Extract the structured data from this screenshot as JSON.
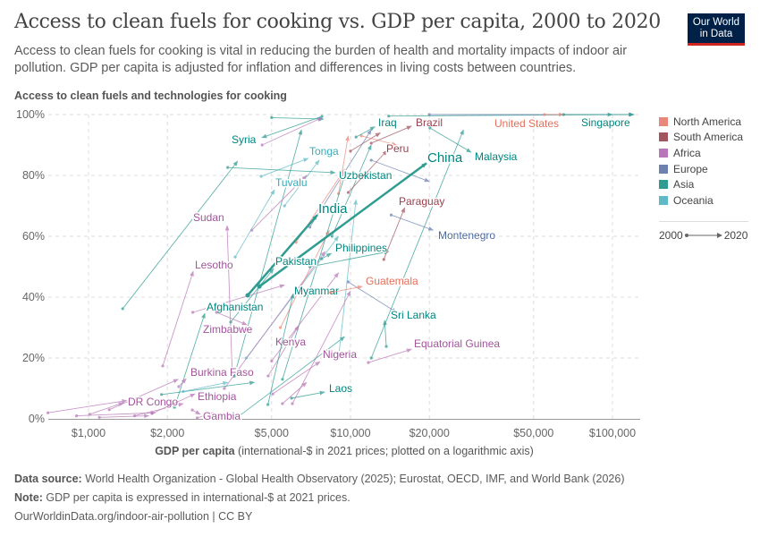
{
  "header": {
    "title": "Access to clean fuels for cooking vs. GDP per capita, 2000 to 2020",
    "subtitle": "Access to clean fuels for cooking is vital in reducing the burden of health and mortality impacts of indoor air pollution. GDP per capita is adjusted for inflation and differences in living costs between countries.",
    "logo_line1": "Our World",
    "logo_line2": "in Data"
  },
  "chart_data": {
    "type": "scatter",
    "subtype": "connected-arrows (start year to end year)",
    "ylabel": "Access to clean fuels and technologies for cooking",
    "xlabel_bold": "GDP per capita",
    "xlabel_rest": " (international-$ in 2021 prices; plotted on a logarithmic axis)",
    "x_scale": "log",
    "xlim": [
      700,
      127000
    ],
    "ylim": [
      0,
      100
    ],
    "grid": true,
    "x_ticks": [
      {
        "v": 1000,
        "label": "$1,000"
      },
      {
        "v": 2000,
        "label": "$2,000"
      },
      {
        "v": 5000,
        "label": "$5,000"
      },
      {
        "v": 10000,
        "label": "$10,000"
      },
      {
        "v": 20000,
        "label": "$20,000"
      },
      {
        "v": 50000,
        "label": "$50,000"
      },
      {
        "v": 100000,
        "label": "$100,000"
      }
    ],
    "y_ticks": [
      {
        "v": 0,
        "label": "0%"
      },
      {
        "v": 20,
        "label": "20%"
      },
      {
        "v": 40,
        "label": "40%"
      },
      {
        "v": 60,
        "label": "60%"
      },
      {
        "v": 80,
        "label": "80%"
      },
      {
        "v": 100,
        "label": "100%"
      }
    ],
    "legend_position": "right",
    "regions": [
      {
        "key": "NA",
        "name": "North America",
        "color": "#e9887a",
        "label_color": "#e56e5a"
      },
      {
        "key": "SA",
        "name": "South America",
        "color": "#a2545f",
        "label_color": "#9a3f4e"
      },
      {
        "key": "AF",
        "name": "Africa",
        "color": "#b976b8",
        "label_color": "#a2559c"
      },
      {
        "key": "EU",
        "name": "Europe",
        "color": "#6e82b0",
        "label_color": "#4c6a9c"
      },
      {
        "key": "AS",
        "name": "Asia",
        "color": "#2e9c91",
        "label_color": "#00847e"
      },
      {
        "key": "OC",
        "name": "Oceania",
        "color": "#5dbac6",
        "label_color": "#38aaba"
      }
    ],
    "time_legend": {
      "start": "2000",
      "end": "2020"
    },
    "countries": [
      {
        "name": "India",
        "region": "AS",
        "start": [
          4050,
          40.6
        ],
        "end": [
          7470,
          67
        ]
      },
      {
        "name": "China",
        "region": "AS",
        "start": [
          4490,
          43.5
        ],
        "end": [
          19500,
          84
        ]
      },
      {
        "name": "Pakistan",
        "region": "AS",
        "start": [
          3490,
          31.8
        ],
        "end": [
          5090,
          49.4
        ]
      },
      {
        "name": "Afghanistan",
        "region": "AS",
        "start": [
          2130,
          3.8
        ],
        "end": [
          2780,
          34.7
        ]
      },
      {
        "name": "Syria",
        "region": "AS",
        "start": [
          7780,
          99.4
        ],
        "end": [
          4590,
          92.4
        ]
      },
      {
        "name": "Tonga",
        "region": "OC",
        "start": [
          4560,
          79.7
        ],
        "end": [
          6900,
          85.6
        ]
      },
      {
        "name": "Tuvalu",
        "region": "OC",
        "start": [
          3630,
          53.2
        ],
        "end": [
          5130,
          75.3
        ]
      },
      {
        "name": "Sudan",
        "region": "AF",
        "start": [
          3540,
          14
        ],
        "end": [
          3380,
          63.5
        ]
      },
      {
        "name": "Lesotho",
        "region": "AF",
        "start": [
          1920,
          17.4
        ],
        "end": [
          2510,
          48.5
        ]
      },
      {
        "name": "Zimbabwe",
        "region": "AF",
        "start": [
          3080,
          35
        ],
        "end": [
          4020,
          30.9
        ]
      },
      {
        "name": "Kenya",
        "region": "AF",
        "start": [
          4850,
          14.1
        ],
        "end": [
          6340,
          30.6
        ]
      },
      {
        "name": "Nigeria",
        "region": "AF",
        "start": [
          5050,
          8.2
        ],
        "end": [
          7650,
          18.8
        ]
      },
      {
        "name": "Burkina Faso",
        "region": "AF",
        "start": [
          2210,
          10.6
        ],
        "end": [
          2360,
          13.2
        ]
      },
      {
        "name": "DR Congo",
        "region": "AF",
        "start": [
          1010,
          1.5
        ],
        "end": [
          1360,
          5.3
        ]
      },
      {
        "name": "Ethiopia",
        "region": "AF",
        "start": [
          1750,
          1.8
        ],
        "end": [
          2550,
          8.2
        ]
      },
      {
        "name": "Gambia",
        "region": "AF",
        "start": [
          2490,
          2.9
        ],
        "end": [
          2670,
          1.5
        ]
      },
      {
        "name": "Myanmar",
        "region": "AS",
        "start": [
          4840,
          4.7
        ],
        "end": [
          6050,
          41.2
        ]
      },
      {
        "name": "Laos",
        "region": "AS",
        "start": [
          5960,
          6.8
        ],
        "end": [
          7970,
          8.8
        ]
      },
      {
        "name": "Philippines",
        "region": "AS",
        "start": [
          7760,
          52.6
        ],
        "end": [
          8450,
          54.4
        ]
      },
      {
        "name": "Uzbekistan",
        "region": "AS",
        "start": [
          3400,
          82.6
        ],
        "end": [
          8740,
          80.9
        ]
      },
      {
        "name": "Iraq",
        "region": "AS",
        "start": [
          10500,
          92.6
        ],
        "end": [
          12400,
          96
        ]
      },
      {
        "name": "Brazil",
        "region": "SA",
        "start": [
          12000,
          90.6
        ],
        "end": [
          17100,
          96.2
        ]
      },
      {
        "name": "Peru",
        "region": "SA",
        "start": [
          9800,
          74.4
        ],
        "end": [
          13800,
          88.2
        ]
      },
      {
        "name": "Paraguay",
        "region": "SA",
        "start": [
          13400,
          52.4
        ],
        "end": [
          16100,
          69.4
        ]
      },
      {
        "name": "Montenegro",
        "region": "EU",
        "start": [
          14300,
          67
        ],
        "end": [
          20700,
          62
        ]
      },
      {
        "name": "Guatemala",
        "region": "NA",
        "start": [
          8400,
          41.5
        ],
        "end": [
          11100,
          43.5
        ]
      },
      {
        "name": "Sri Lanka",
        "region": "AS",
        "start": [
          13700,
          23.8
        ],
        "end": [
          13500,
          32.4
        ]
      },
      {
        "name": "Equatorial Guinea",
        "region": "AF",
        "start": [
          11700,
          18.5
        ],
        "end": [
          17100,
          22.9
        ]
      },
      {
        "name": "Malaysia",
        "region": "AS",
        "start": [
          20100,
          95.6
        ],
        "end": [
          28900,
          87.6
        ]
      },
      {
        "name": "United States",
        "region": "NA",
        "start": [
          55000,
          100
        ],
        "end": [
          65000,
          100
        ]
      },
      {
        "name": "Singapore",
        "region": "AS",
        "start": [
          65100,
          100
        ],
        "end": [
          121000,
          100
        ]
      }
    ],
    "unlabeled": [
      [
        "AS",
        1350,
        36.2,
        3710,
        84.7
      ],
      [
        "AS",
        5000,
        99,
        7900,
        98.5
      ],
      [
        "AF",
        4600,
        90,
        7800,
        99
      ],
      [
        "OC",
        4000,
        20,
        9000,
        60
      ],
      [
        "AF",
        2500,
        35,
        5600,
        44
      ],
      [
        "AF",
        3300,
        10,
        8000,
        55
      ],
      [
        "AS",
        3600,
        14,
        6500,
        95
      ],
      [
        "NA",
        5400,
        30,
        8300,
        62
      ],
      [
        "NA",
        9000,
        74,
        9800,
        93
      ],
      [
        "AS",
        12000,
        20,
        27000,
        95
      ],
      [
        "AS",
        5500,
        13,
        9500,
        80
      ],
      [
        "AF",
        6000,
        5,
        10000,
        42
      ],
      [
        "AF",
        700,
        2,
        1400,
        6
      ],
      [
        "AF",
        900,
        1,
        1800,
        2
      ],
      [
        "AF",
        1100,
        0.5,
        1700,
        1
      ],
      [
        "AF",
        1500,
        1,
        2300,
        5
      ],
      [
        "AS",
        1900,
        8,
        4300,
        12
      ],
      [
        "AF",
        2600,
        0.3,
        3000,
        2
      ],
      [
        "AS",
        3700,
        0.5,
        9500,
        27
      ],
      [
        "AF",
        5500,
        5,
        6800,
        12
      ],
      [
        "EU",
        12000,
        85,
        20000,
        78
      ],
      [
        "EU",
        9800,
        45,
        15000,
        35
      ],
      [
        "SA",
        10000,
        88,
        13000,
        94
      ],
      [
        "NA",
        11000,
        93,
        15000,
        90
      ],
      [
        "AS",
        8500,
        60,
        12000,
        90
      ],
      [
        "OC",
        9000,
        20,
        10500,
        72
      ],
      [
        "EU",
        7000,
        63,
        12000,
        95
      ],
      [
        "AS",
        14000,
        99.5,
        100000,
        100
      ],
      [
        "EU",
        20000,
        100,
        120000,
        100
      ],
      [
        "AF",
        5000,
        19,
        9000,
        48
      ],
      [
        "AS",
        7000,
        50,
        14000,
        55
      ],
      [
        "OC",
        2300,
        9,
        3400,
        12
      ],
      [
        "AF",
        1200,
        3,
        2200,
        13
      ],
      [
        "NA",
        6200,
        58,
        9500,
        82
      ],
      [
        "AF",
        4200,
        62,
        6800,
        80
      ],
      [
        "OC",
        5600,
        70,
        7600,
        85
      ]
    ]
  },
  "footer": {
    "source_label": "Data source:",
    "source_text": " World Health Organization - Global Health Observatory (2025); Eurostat, OECD, IMF, and World Bank (2026)",
    "note_label": "Note:",
    "note_text": " GDP per capita is expressed in international-$ at 2021 prices.",
    "url": "OurWorldinData.org/indoor-air-pollution | CC BY"
  }
}
